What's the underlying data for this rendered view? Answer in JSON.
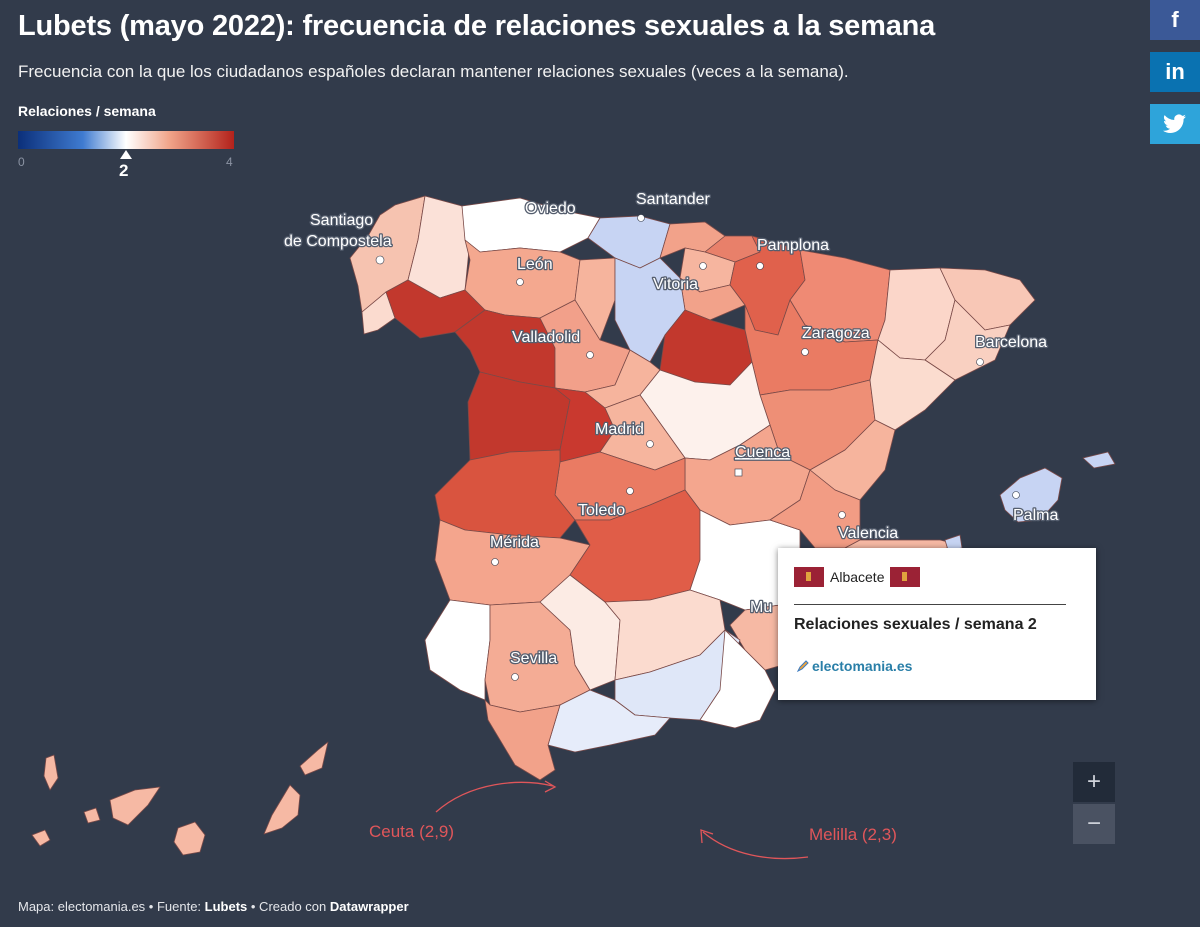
{
  "title": "Lubets (mayo 2022): frecuencia de relaciones sexuales a la semana",
  "subtitle": "Frecuencia con la que los ciudadanos españoles declaran mantener relaciones sexuales (veces a la semana).",
  "legend": {
    "title": "Relaciones / semana",
    "min": "0",
    "max": "4",
    "marker_value": "2",
    "marker_fraction": 0.5,
    "colors": [
      "#0b2f7a",
      "#3f7bd0",
      "#ffffff",
      "#f1a58a",
      "#b3221b"
    ]
  },
  "share": {
    "facebook": "f",
    "linkedin": "in",
    "twitter": "twitter-bird-icon"
  },
  "cities": [
    {
      "id": "santiago",
      "label1": "Santiago",
      "label2": "de Compostela"
    },
    {
      "id": "oviedo",
      "label": "Oviedo"
    },
    {
      "id": "santander",
      "label": "Santander"
    },
    {
      "id": "leon",
      "label": "León"
    },
    {
      "id": "vitoria",
      "label": "Vitoria"
    },
    {
      "id": "pamplona",
      "label": "Pamplona"
    },
    {
      "id": "valladolid",
      "label": "Valladolid"
    },
    {
      "id": "zaragoza",
      "label": "Zaragoza"
    },
    {
      "id": "barcelona",
      "label": "Barcelona"
    },
    {
      "id": "madrid",
      "label": "Madrid"
    },
    {
      "id": "cuenca",
      "label": "Cuenca"
    },
    {
      "id": "toledo",
      "label": "Toledo"
    },
    {
      "id": "merida",
      "label": "Mérida"
    },
    {
      "id": "valencia",
      "label": "Valencia"
    },
    {
      "id": "palma",
      "label": "Palma"
    },
    {
      "id": "murcia",
      "label": "Mu"
    },
    {
      "id": "sevilla",
      "label": "Sevilla"
    }
  ],
  "annotations": {
    "ceuta": "Ceuta (2,9)",
    "melilla": "Melilla (2,3)"
  },
  "tooltip": {
    "region": "Albacete",
    "metric": "Relaciones sexuales / semana 2",
    "logo": "electomania.es"
  },
  "zoom": {
    "in": "+",
    "out": "−"
  },
  "footer": {
    "map_prefix": "Mapa: electomania.es • Fuente: ",
    "source": "Lubets",
    "created_prefix": " • Creado con ",
    "tool": "Datawrapper"
  }
}
